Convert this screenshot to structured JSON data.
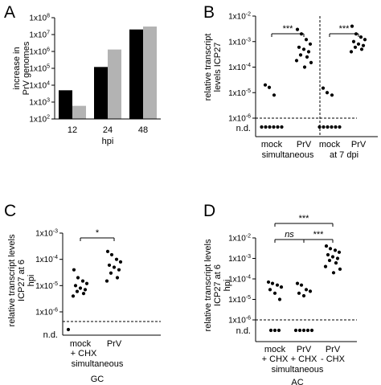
{
  "chart_data": [
    {
      "panel": "A",
      "type": "bar",
      "ylabel": "increase in PrV genomes",
      "xlabel": "hpi",
      "yscale": "log",
      "ylim": [
        100,
        100000000
      ],
      "ytick_labels": [
        "1x10^2",
        "1x10^3",
        "1x10^4",
        "1x10^5",
        "1x10^6",
        "1x10^7",
        "1x10^8"
      ],
      "categories": [
        "12",
        "24",
        "48"
      ],
      "series": [
        {
          "color": "#000000",
          "values": [
            5000,
            120000,
            20000000
          ]
        },
        {
          "color": "#b3b3b3",
          "values": [
            600,
            1300000,
            30000000
          ]
        }
      ]
    },
    {
      "panel": "B",
      "type": "scatter",
      "ylabel": "relative transcript levels ICP27",
      "yscale": "log",
      "ylim": [
        1e-06,
        0.01
      ],
      "ytick_labels": [
        "1x10^-6",
        "1x10^-5",
        "1x10^-4",
        "1x10^-3",
        "1x10^-2"
      ],
      "nd_label": "n.d.",
      "groups": [
        {
          "label": "mock",
          "values": [
            2e-05,
            1.6e-05,
            8e-06
          ],
          "nd_count": 6
        },
        {
          "label": "PrV",
          "values": [
            0.003,
            0.002,
            0.0012,
            0.0008,
            0.0006,
            0.0005,
            0.0004,
            0.0003,
            0.00025,
            0.00018,
            0.00015,
            0.0001
          ],
          "nd_count": 0
        },
        {
          "label": "mock",
          "values": [
            1.5e-05,
            1e-05,
            8e-06
          ],
          "nd_count": 6
        },
        {
          "label": "PrV",
          "values": [
            0.004,
            0.002,
            0.0015,
            0.0012,
            0.001,
            0.0008,
            0.0007,
            0.0006,
            0.0005,
            0.0004
          ],
          "nd_count": 0
        }
      ],
      "group_captions": [
        "simultaneous",
        "at 7 dpi"
      ],
      "significance": [
        {
          "between": [
            0,
            1
          ],
          "label": "***"
        },
        {
          "between": [
            2,
            3
          ],
          "label": "***"
        }
      ]
    },
    {
      "panel": "C",
      "type": "scatter",
      "ylabel": "relative transcript levels ICP27 at 6 hpi",
      "yscale": "log",
      "ylim": [
        1e-06,
        0.001
      ],
      "ytick_labels": [
        "1x10^-3",
        "1x10^-4",
        "1x10^-5",
        "1x10^-6"
      ],
      "nd_label": "n.d.",
      "groups": [
        {
          "label": "mock + CHX",
          "values": [
            4e-05,
            2e-05,
            1.5e-05,
            1.2e-05,
            1e-05,
            8e-06,
            7e-06,
            6e-06,
            5e-06,
            4e-06
          ],
          "nd_count": 1
        },
        {
          "label": "PrV",
          "values": [
            0.0002,
            0.00015,
            0.0001,
            8e-05,
            6e-05,
            5e-05,
            4e-05,
            3e-05,
            2e-05,
            1.5e-05
          ],
          "nd_count": 0
        }
      ],
      "group_captions": [
        "simultaneous"
      ],
      "caption": "GC",
      "significance": [
        {
          "between": [
            0,
            1
          ],
          "label": "*"
        }
      ]
    },
    {
      "panel": "D",
      "type": "scatter",
      "ylabel": "relative transcript levels ICP27 at 6 hpi",
      "yscale": "log",
      "ylim": [
        1e-06,
        0.01
      ],
      "ytick_labels": [
        "1x10^-2",
        "1x10^-3",
        "1x10^-4",
        "1x10^-5",
        "1x10^-6"
      ],
      "nd_label": "n.d.",
      "groups": [
        {
          "label": "mock + CHX",
          "values": [
            7e-05,
            6e-05,
            5e-05,
            4e-05,
            3e-05,
            2e-05,
            1e-05
          ],
          "nd_count": 3
        },
        {
          "label": "PrV + CHX",
          "values": [
            6e-05,
            5e-05,
            3e-05,
            2.5e-05,
            2e-05,
            1.5e-05
          ],
          "nd_count": 5
        },
        {
          "label": "PrV - CHX",
          "values": [
            0.004,
            0.003,
            0.0025,
            0.002,
            0.0015,
            0.0012,
            0.001,
            0.0008,
            0.0006,
            0.0004,
            0.0003,
            0.0002
          ],
          "nd_count": 0
        }
      ],
      "group_captions": [
        "simultaneous"
      ],
      "caption": "AC",
      "significance": [
        {
          "between": [
            0,
            2
          ],
          "label": "***"
        },
        {
          "between": [
            0,
            1
          ],
          "label": "ns"
        },
        {
          "between": [
            1,
            2
          ],
          "label": "***"
        }
      ]
    }
  ]
}
